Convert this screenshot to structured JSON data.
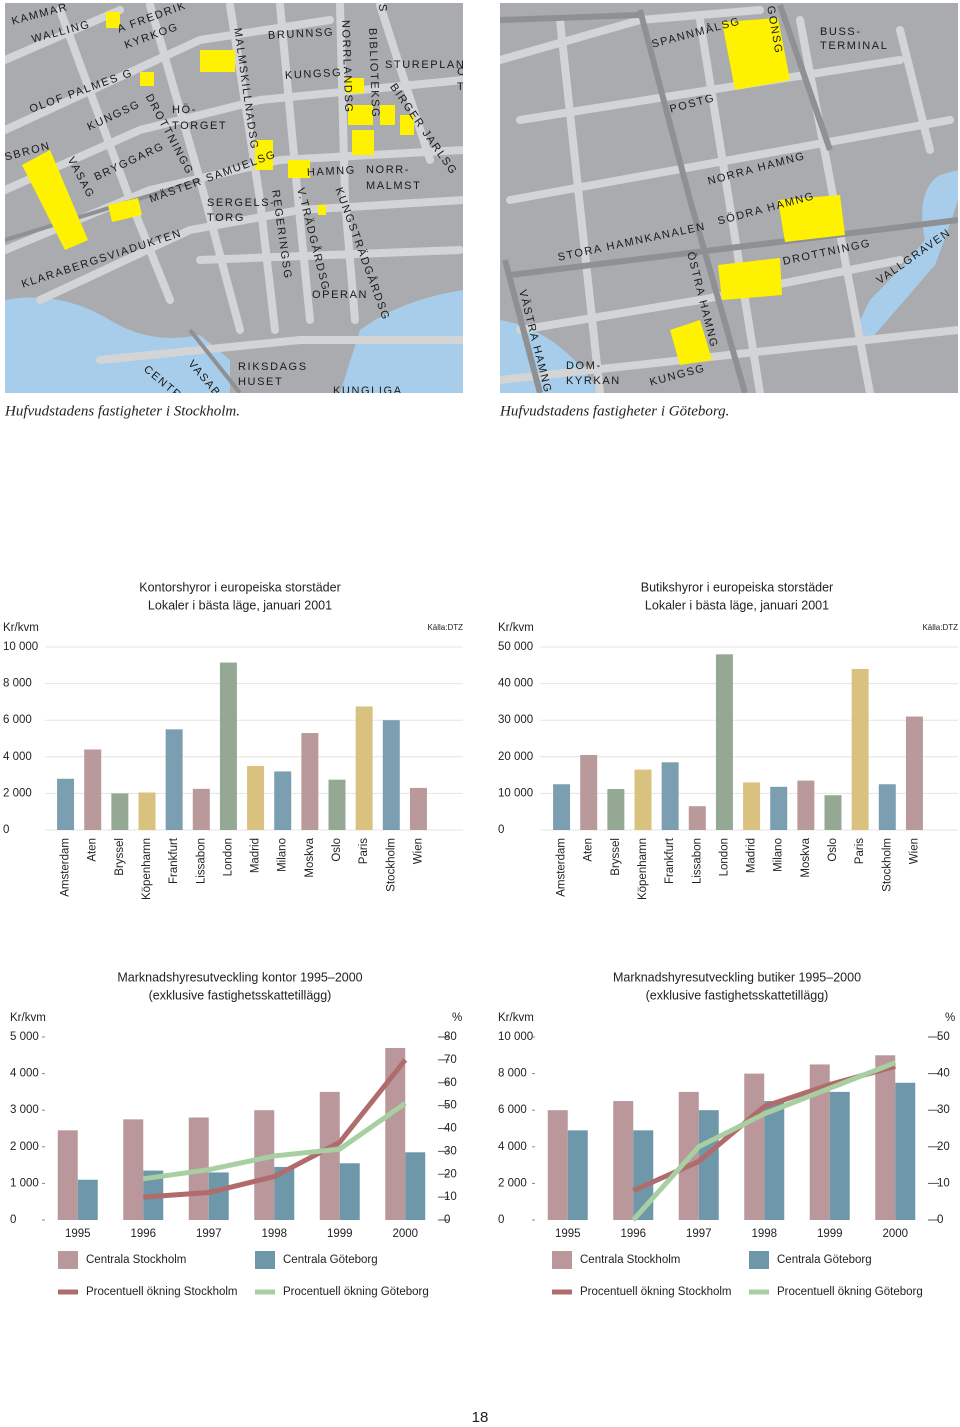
{
  "maps": [
    {
      "caption": "Hufvudstadens fastigheter i Stockholm.",
      "labels": [
        "KAMMAR",
        "WALLING",
        "A FREDRIK",
        "KYRKOG",
        "OLOF PALMES G",
        "KUNGSG",
        "DROTTNINGG",
        "HÖ-",
        "TORGET",
        "BRYGGARG",
        "VASAG",
        "SBRON",
        "MÄSTER SAMUELSG",
        "SERGELS-",
        "TORG",
        "KLARABERGSVIADUKTEN",
        "MALMSKILLNADSG",
        "BRUNNSG",
        "KUNGSG",
        "NORRLANDSG",
        "BIBLIOTEKSG",
        "STUREPLAN",
        "BIRGER JARLSG",
        "HAMNG",
        "NORR-",
        "MALMST",
        "REGERINGSG",
        "V.TRÄDGÅRDSG",
        "KUNGSTRÄDGÅRDSG",
        "OPERAN",
        "RIKSDAGS",
        "HUSET",
        "VASABR",
        "CENTR",
        "KUNGLIGA",
        "S",
        "C",
        "T"
      ]
    },
    {
      "caption": "Hufvudstadens fastigheter i Göteborg.",
      "labels": [
        "GONSG",
        "SPANNMÅLSG",
        "BUSS-",
        "TERMINAL",
        "POSTG",
        "NORRA HAMNG",
        "SÖDRA HAMNG",
        "STORA HAMNKANALEN",
        "DROTTNINGG",
        "VALLGRAVEN",
        "ÖSTRA HAMNG",
        "VÄSTRA HAMNG",
        "DOM-",
        "KYRKAN",
        "KUNGSG"
      ]
    }
  ],
  "chart_data": [
    {
      "type": "bar",
      "title": "Kontorshyror i europeiska storstäder",
      "subtitle": "Lokaler i bästa läge, januari 2001",
      "y_label": "Kr/kvm",
      "source": "Källa:DTZ",
      "categories": [
        "Amsterdam",
        "Aten",
        "Bryssel",
        "Köpenhamn",
        "Frankfurt",
        "Lissabon",
        "London",
        "Madrid",
        "Milano",
        "Moskva",
        "Oslo",
        "Paris",
        "Stockholm",
        "Wien"
      ],
      "values": [
        2800,
        4400,
        2000,
        2050,
        5500,
        2250,
        9150,
        3500,
        3200,
        5300,
        2750,
        6750,
        6000,
        2300
      ],
      "colors": [
        "#7b9fb1",
        "#ba999a",
        "#94a894",
        "#d9c27f",
        "#7b9fb1",
        "#ba999a",
        "#94a894",
        "#d9c27f",
        "#7b9fb1",
        "#ba999a",
        "#94a894",
        "#d9c27f",
        "#7b9fb1",
        "#ba999a"
      ],
      "ylim": [
        0,
        10000
      ],
      "yticks": [
        0,
        {
          "value": 2000,
          "label": "2 000"
        },
        {
          "value": 4000,
          "label": "4 000"
        },
        {
          "value": 6000,
          "label": "6 000"
        },
        {
          "value": 8000,
          "label": "8 000"
        },
        {
          "value": 10000,
          "label": "10 000"
        }
      ],
      "grid": true
    },
    {
      "type": "bar",
      "title": "Butikshyror i europeiska storstäder",
      "subtitle": "Lokaler i bästa läge, januari 2001",
      "y_label": "Kr/kvm",
      "source": "Källa:DTZ",
      "categories": [
        "Amsterdam",
        "Aten",
        "Bryssel",
        "Köpenhamn",
        "Frankfurt",
        "Lissabon",
        "London",
        "Madrid",
        "Milano",
        "Moskva",
        "Oslo",
        "Paris",
        "Stockholm",
        "Wien"
      ],
      "values": [
        12500,
        20500,
        11200,
        16500,
        18500,
        6500,
        48000,
        13000,
        11800,
        13500,
        9500,
        44000,
        12500,
        31000
      ],
      "colors": [
        "#7b9fb1",
        "#ba999a",
        "#94a894",
        "#d9c27f",
        "#7b9fb1",
        "#ba999a",
        "#94a894",
        "#d9c27f",
        "#7b9fb1",
        "#ba999a",
        "#94a894",
        "#d9c27f",
        "#7b9fb1",
        "#ba999a"
      ],
      "ylim": [
        0,
        50000
      ],
      "yticks": [
        0,
        {
          "value": 10000,
          "label": "10 000"
        },
        {
          "value": 20000,
          "label": "20 000"
        },
        {
          "value": 30000,
          "label": "30 000"
        },
        {
          "value": 40000,
          "label": "40 000"
        },
        {
          "value": 50000,
          "label": "50 000"
        }
      ],
      "grid": true
    },
    {
      "type": "combo",
      "title": "Marknadshyresutveckling kontor 1995–2000",
      "subtitle": "(exklusive fastighetsskattetillägg)",
      "y_label": "Kr/kvm",
      "y2_label": "%",
      "categories": [
        "1995",
        "1996",
        "1997",
        "1998",
        "1999",
        "2000"
      ],
      "series": [
        {
          "name": "Centrala Stockholm",
          "type": "bar",
          "color": "#b9979a",
          "values": [
            2450,
            2750,
            2800,
            3000,
            3500,
            4700
          ]
        },
        {
          "name": "Centrala Göteborg",
          "type": "bar",
          "color": "#6e98a9",
          "values": [
            1100,
            1350,
            1300,
            1450,
            1550,
            1850
          ]
        },
        {
          "name": "Procentuell ökning Stockholm",
          "type": "line",
          "axis": "y2",
          "color": "#b06b6c",
          "values": [
            null,
            10,
            12,
            19,
            34,
            70
          ]
        },
        {
          "name": "Procentuell ökning Göteborg",
          "type": "line",
          "axis": "y2",
          "color": "#a8cfa2",
          "values": [
            null,
            18,
            22,
            28,
            31,
            51
          ]
        }
      ],
      "ylim": [
        0,
        5000
      ],
      "yticks": [
        0,
        {
          "value": 1000,
          "label": "1 000"
        },
        {
          "value": 2000,
          "label": "2 000"
        },
        {
          "value": 3000,
          "label": "3 000"
        },
        {
          "value": 4000,
          "label": "4 000"
        },
        {
          "value": 5000,
          "label": "5 000"
        }
      ],
      "y2lim": [
        0,
        80
      ],
      "y2ticks": [
        0,
        10,
        20,
        30,
        40,
        50,
        60,
        70,
        80
      ]
    },
    {
      "type": "combo",
      "title": "Marknadshyresutveckling butiker 1995–2000",
      "subtitle": "(exklusive fastighetsskattetillägg)",
      "y_label": "Kr/kvm",
      "y2_label": "%",
      "categories": [
        "1995",
        "1996",
        "1997",
        "1998",
        "1999",
        "2000"
      ],
      "series": [
        {
          "name": "Centrala Stockholm",
          "type": "bar",
          "color": "#b9979a",
          "values": [
            6000,
            6500,
            7000,
            8000,
            8500,
            9000
          ]
        },
        {
          "name": "Centrala Göteborg",
          "type": "bar",
          "color": "#6e98a9",
          "values": [
            4900,
            4900,
            6000,
            6500,
            7000,
            7500
          ]
        },
        {
          "name": "Procentuell ökning Stockholm",
          "type": "line",
          "axis": "y2",
          "color": "#b06b6c",
          "values": [
            null,
            8,
            16,
            31,
            37,
            42
          ]
        },
        {
          "name": "Procentuell ökning Göteborg",
          "type": "line",
          "axis": "y2",
          "color": "#a8cfa2",
          "values": [
            null,
            0,
            20,
            29,
            36,
            43
          ]
        }
      ],
      "ylim": [
        0,
        10000
      ],
      "yticks": [
        0,
        {
          "value": 2000,
          "label": "2 000"
        },
        {
          "value": 4000,
          "label": "4 000"
        },
        {
          "value": 6000,
          "label": "6 000"
        },
        {
          "value": 8000,
          "label": "8 000"
        },
        {
          "value": 10000,
          "label": "10 000"
        }
      ],
      "y2lim": [
        0,
        50
      ],
      "y2ticks": [
        0,
        10,
        20,
        30,
        40,
        50
      ]
    }
  ],
  "page_number": "18"
}
